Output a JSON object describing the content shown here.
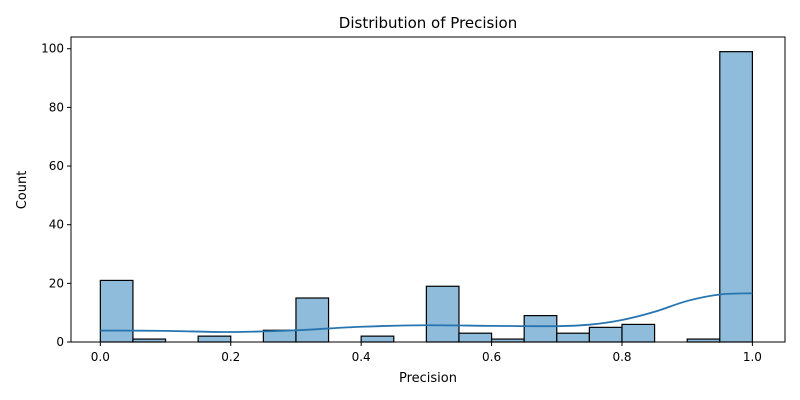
{
  "chart_data": {
    "type": "bar",
    "title": "Distribution of Precision",
    "xlabel": "Precision",
    "ylabel": "Count",
    "xlim": [
      -0.045,
      1.05
    ],
    "ylim": [
      0,
      104
    ],
    "xticks": [
      0.0,
      0.2,
      0.4,
      0.6,
      0.8,
      1.0
    ],
    "xtick_labels": [
      "0.0",
      "0.2",
      "0.4",
      "0.6",
      "0.8",
      "1.0"
    ],
    "yticks": [
      0,
      20,
      40,
      60,
      80,
      100
    ],
    "ytick_labels": [
      "0",
      "20",
      "40",
      "60",
      "80",
      "100"
    ],
    "bin_width": 0.05,
    "bins": [
      {
        "start": 0.0,
        "count": 21
      },
      {
        "start": 0.05,
        "count": 1
      },
      {
        "start": 0.1,
        "count": 0
      },
      {
        "start": 0.15,
        "count": 2
      },
      {
        "start": 0.2,
        "count": 0
      },
      {
        "start": 0.25,
        "count": 4
      },
      {
        "start": 0.3,
        "count": 15
      },
      {
        "start": 0.35,
        "count": 0
      },
      {
        "start": 0.4,
        "count": 2
      },
      {
        "start": 0.45,
        "count": 0
      },
      {
        "start": 0.5,
        "count": 19
      },
      {
        "start": 0.55,
        "count": 3
      },
      {
        "start": 0.6,
        "count": 1
      },
      {
        "start": 0.65,
        "count": 9
      },
      {
        "start": 0.7,
        "count": 3
      },
      {
        "start": 0.75,
        "count": 5
      },
      {
        "start": 0.8,
        "count": 6
      },
      {
        "start": 0.85,
        "count": 0
      },
      {
        "start": 0.9,
        "count": 1
      },
      {
        "start": 0.95,
        "count": 99
      }
    ],
    "kde": {
      "x": [
        0.0,
        0.1,
        0.2,
        0.3,
        0.4,
        0.5,
        0.6,
        0.7,
        0.75,
        0.8,
        0.85,
        0.9,
        0.95,
        1.0
      ],
      "y": [
        3.9,
        3.8,
        3.4,
        4.0,
        5.2,
        5.7,
        5.5,
        5.4,
        5.9,
        7.5,
        10.3,
        14.0,
        16.2,
        16.6
      ]
    },
    "colors": {
      "bar_fill": "#8fbcdb",
      "bar_edge": "#000000",
      "kde_line": "#2775b0"
    }
  }
}
